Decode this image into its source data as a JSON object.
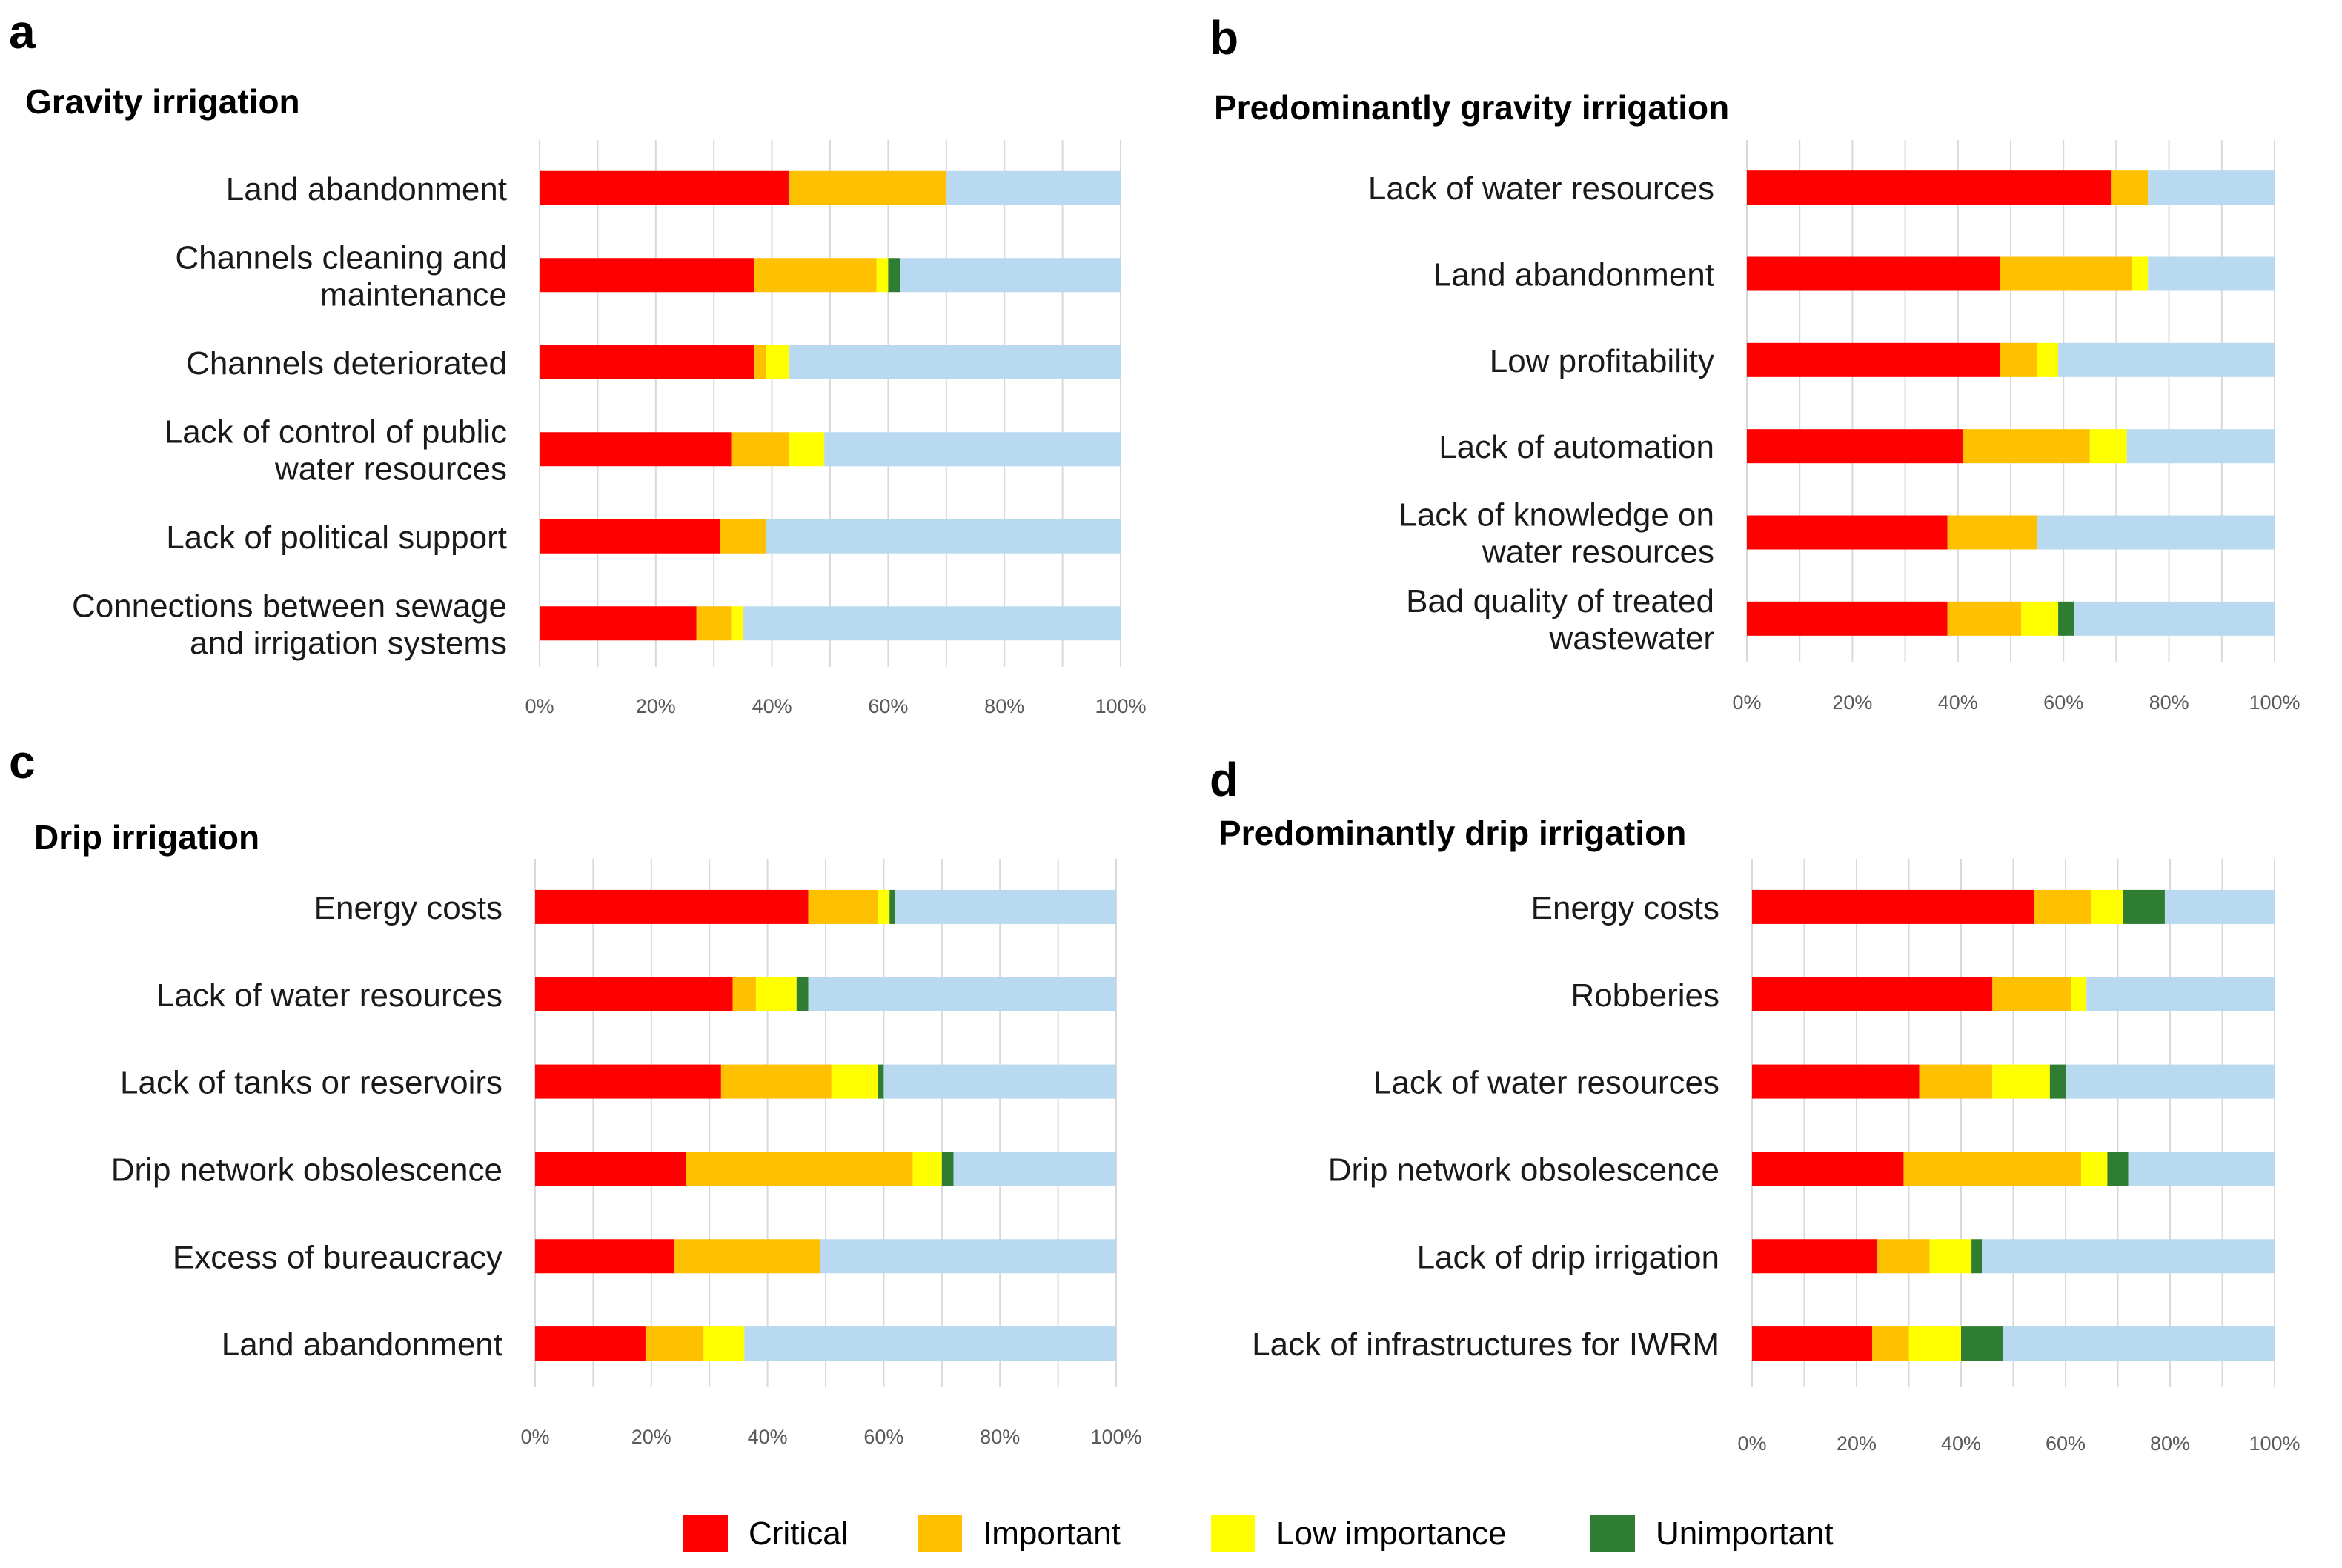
{
  "colors": {
    "critical": "#ff0000",
    "important": "#ffc000",
    "low": "#ffff00",
    "unimportant": "#2e7d32",
    "remainder": "#b8d9ef",
    "grid": "#d9d9d9",
    "tick": "#595959"
  },
  "legend": {
    "items": [
      {
        "label": "Critical",
        "color_key": "critical"
      },
      {
        "label": "Important",
        "color_key": "important"
      },
      {
        "label": "Low importance",
        "color_key": "low"
      },
      {
        "label": "Unimportant",
        "color_key": "unimportant"
      }
    ]
  },
  "chart_data": [
    {
      "panel": "a",
      "type": "bar",
      "orientation": "horizontal-stacked",
      "title": "Gravity irrigation",
      "xlim": [
        0,
        100
      ],
      "xticks": [
        "0%",
        "20%",
        "40%",
        "60%",
        "80%",
        "100%"
      ],
      "categories": [
        [
          "Land abandonment"
        ],
        [
          "Channels cleaning and",
          "maintenance"
        ],
        [
          "Channels deteriorated"
        ],
        [
          "Lack of control of public",
          "water resources"
        ],
        [
          "Lack of political support"
        ],
        [
          "Connections between sewage",
          "and irrigation systems"
        ]
      ],
      "series": [
        {
          "name": "Critical",
          "values": [
            43,
            37,
            37,
            33,
            31,
            27
          ]
        },
        {
          "name": "Important",
          "values": [
            27,
            21,
            2,
            10,
            8,
            6
          ]
        },
        {
          "name": "Low importance",
          "values": [
            0,
            2,
            4,
            6,
            0,
            2
          ]
        },
        {
          "name": "Unimportant",
          "values": [
            0,
            2,
            0,
            0,
            0,
            0
          ]
        }
      ]
    },
    {
      "panel": "b",
      "type": "bar",
      "orientation": "horizontal-stacked",
      "title": "Predominantly  gravity irrigation",
      "xlim": [
        0,
        100
      ],
      "xticks": [
        "0%",
        "20%",
        "40%",
        "60%",
        "80%",
        "100%"
      ],
      "categories": [
        [
          "Lack of water resources"
        ],
        [
          "Land abandonment"
        ],
        [
          "Low profitability"
        ],
        [
          "Lack of automation"
        ],
        [
          "Lack of knowledge on",
          "water resources"
        ],
        [
          "Bad quality of treated",
          "wastewater"
        ]
      ],
      "series": [
        {
          "name": "Critical",
          "values": [
            69,
            48,
            48,
            41,
            38,
            38
          ]
        },
        {
          "name": "Important",
          "values": [
            7,
            25,
            7,
            24,
            17,
            14
          ]
        },
        {
          "name": "Low importance",
          "values": [
            0,
            3,
            4,
            7,
            0,
            7
          ]
        },
        {
          "name": "Unimportant",
          "values": [
            0,
            0,
            0,
            0,
            0,
            3
          ]
        }
      ]
    },
    {
      "panel": "c",
      "type": "bar",
      "orientation": "horizontal-stacked",
      "title": "Drip irrigation",
      "xlim": [
        0,
        100
      ],
      "xticks": [
        "0%",
        "20%",
        "40%",
        "60%",
        "80%",
        "100%"
      ],
      "categories": [
        [
          "Energy costs"
        ],
        [
          "Lack of water resources"
        ],
        [
          "Lack of tanks or reservoirs"
        ],
        [
          "Drip network obsolescence"
        ],
        [
          "Excess of bureaucracy"
        ],
        [
          "Land abandonment"
        ]
      ],
      "series": [
        {
          "name": "Critical",
          "values": [
            47,
            34,
            32,
            26,
            24,
            19
          ]
        },
        {
          "name": "Important",
          "values": [
            12,
            4,
            19,
            39,
            25,
            10
          ]
        },
        {
          "name": "Low importance",
          "values": [
            2,
            7,
            8,
            5,
            0,
            7
          ]
        },
        {
          "name": "Unimportant",
          "values": [
            1,
            2,
            1,
            2,
            0,
            0
          ]
        }
      ]
    },
    {
      "panel": "d",
      "type": "bar",
      "orientation": "horizontal-stacked",
      "title": "Predominantly  drip irrigation",
      "xlim": [
        0,
        100
      ],
      "xticks": [
        "0%",
        "20%",
        "40%",
        "60%",
        "80%",
        "100%"
      ],
      "categories": [
        [
          "Energy costs"
        ],
        [
          "Robberies"
        ],
        [
          "Lack of water resources"
        ],
        [
          "Drip network obsolescence"
        ],
        [
          "Lack of drip irrigation"
        ],
        [
          "Lack of infrastructures for IWRM"
        ]
      ],
      "series": [
        {
          "name": "Critical",
          "values": [
            54,
            46,
            32,
            29,
            24,
            23
          ]
        },
        {
          "name": "Important",
          "values": [
            11,
            15,
            14,
            34,
            10,
            7
          ]
        },
        {
          "name": "Low importance",
          "values": [
            6,
            3,
            11,
            5,
            8,
            10
          ]
        },
        {
          "name": "Unimportant",
          "values": [
            8,
            0,
            3,
            4,
            2,
            8
          ]
        }
      ]
    }
  ]
}
